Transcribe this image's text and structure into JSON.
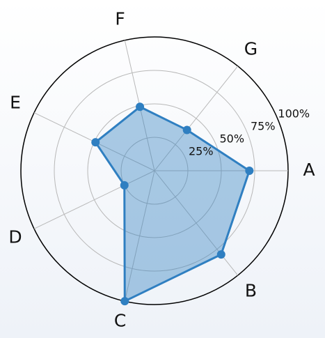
{
  "chart_data": {
    "type": "radar",
    "categories": [
      "A",
      "B",
      "C",
      "D",
      "E",
      "F",
      "G"
    ],
    "values": [
      71,
      80,
      100,
      25,
      49,
      49,
      39
    ],
    "color": "#2f7fc1",
    "rlim": [
      0,
      100
    ],
    "rticks": [
      {
        "value": 25,
        "label": "25%"
      },
      {
        "value": 50,
        "label": "50%"
      },
      {
        "value": 75,
        "label": "75%"
      },
      {
        "value": 100,
        "label": "100%"
      }
    ],
    "grid": true
  }
}
